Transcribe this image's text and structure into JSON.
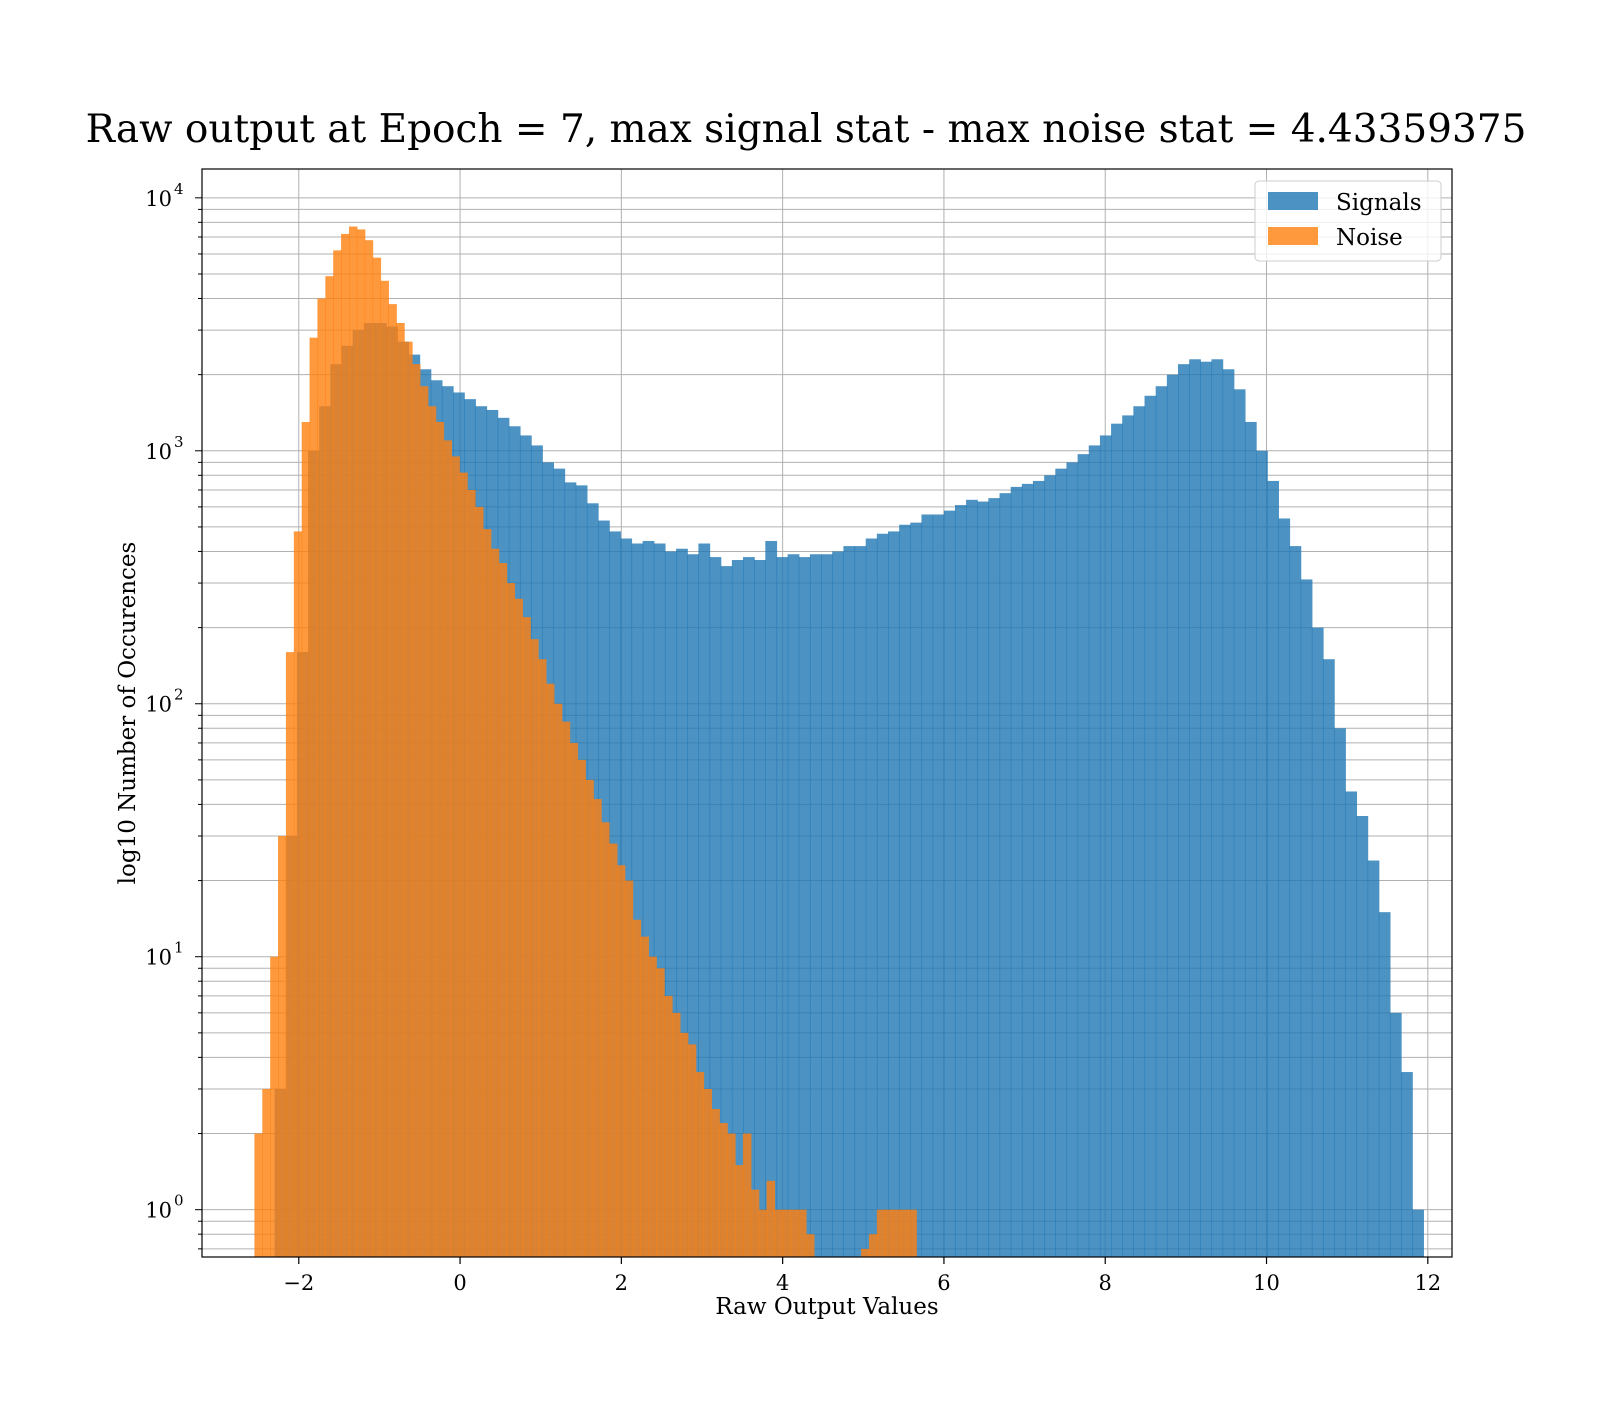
{
  "chart_data": {
    "type": "histogram",
    "title": "Raw output at Epoch = 7, max signal stat - max noise stat = 4.43359375",
    "xlabel": "Raw Output Values",
    "ylabel": "log10 Number of Occurences",
    "x_scale": "linear",
    "y_scale": "log",
    "xlim": [
      -3.2,
      12.3
    ],
    "ylim": [
      0.65,
      13000
    ],
    "x_ticks": [
      -2,
      0,
      2,
      4,
      6,
      8,
      10,
      12
    ],
    "x_tick_labels": [
      "−2",
      "0",
      "2",
      "4",
      "6",
      "8",
      "10",
      "12"
    ],
    "y_ticks": [
      1,
      10,
      100,
      1000,
      10000
    ],
    "y_tick_labels": [
      {
        "base": "10",
        "exp": "0"
      },
      {
        "base": "10",
        "exp": "1"
      },
      {
        "base": "10",
        "exp": "2"
      },
      {
        "base": "10",
        "exp": "3"
      },
      {
        "base": "10",
        "exp": "4"
      }
    ],
    "grid": true,
    "legend_position": "top-right",
    "series": [
      {
        "name": "Signals",
        "color": "#1f77b4",
        "opacity": 0.8,
        "bin_start": -2.3,
        "bin_width": 0.1383,
        "counts": [
          3,
          30,
          160,
          1000,
          1500,
          2200,
          2600,
          3000,
          3200,
          3200,
          3100,
          2700,
          2400,
          2100,
          1900,
          1800,
          1700,
          1600,
          1500,
          1450,
          1350,
          1250,
          1150,
          1050,
          900,
          850,
          750,
          730,
          620,
          530,
          480,
          450,
          430,
          440,
          430,
          400,
          410,
          390,
          430,
          380,
          350,
          370,
          380,
          370,
          440,
          380,
          390,
          380,
          390,
          390,
          400,
          420,
          420,
          450,
          470,
          480,
          510,
          520,
          560,
          560,
          580,
          610,
          640,
          630,
          650,
          680,
          720,
          740,
          760,
          800,
          850,
          900,
          970,
          1050,
          1150,
          1280,
          1380,
          1500,
          1650,
          1800,
          2000,
          2200,
          2300,
          2250,
          2300,
          2100,
          1750,
          1300,
          1000,
          760,
          540,
          420,
          310,
          200,
          150,
          80,
          45,
          36,
          24,
          15,
          6,
          3.5,
          1
        ]
      },
      {
        "name": "Noise",
        "color": "#ff7f0e",
        "opacity": 0.8,
        "bin_start": -2.55,
        "bin_width": 0.0977,
        "counts": [
          2,
          3,
          10,
          30,
          160,
          480,
          1300,
          2800,
          4000,
          4900,
          6200,
          7200,
          7700,
          7500,
          6800,
          5800,
          4700,
          3800,
          3200,
          2700,
          2200,
          1800,
          1500,
          1300,
          1100,
          950,
          820,
          700,
          600,
          490,
          410,
          360,
          300,
          260,
          220,
          180,
          150,
          120,
          100,
          85,
          70,
          60,
          50,
          42,
          34,
          28,
          23,
          20,
          14,
          12,
          10,
          9,
          7,
          6,
          5,
          4.5,
          3.5,
          3,
          2.5,
          2.2,
          2,
          1.5,
          2,
          1.2,
          1,
          1.3,
          1,
          1,
          1,
          1,
          0.8,
          0.6,
          0.5,
          0.5,
          0.5,
          0.5,
          0.6,
          0.7,
          0.8,
          1,
          1,
          1,
          1,
          1
        ]
      }
    ]
  }
}
